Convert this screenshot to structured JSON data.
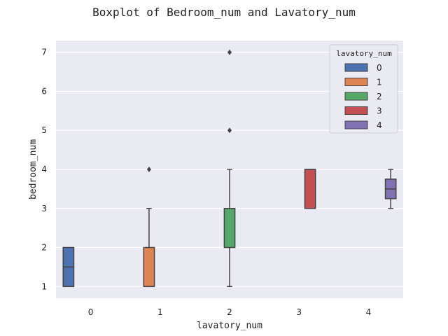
{
  "chart_data": {
    "type": "boxplot",
    "title": "Boxplot of Bedroom_num and Lavatory_num",
    "xlabel": "lavatory_num",
    "ylabel": "bedroom_num",
    "categories": [
      "0",
      "1",
      "2",
      "3",
      "4"
    ],
    "y_ticks": [
      1,
      2,
      3,
      4,
      5,
      6,
      7
    ],
    "ylim": [
      0.7,
      7.3
    ],
    "grid": true,
    "legend": {
      "title": "lavatory_num",
      "position": "top-right",
      "entries": [
        "0",
        "1",
        "2",
        "3",
        "4"
      ]
    },
    "colors": [
      "#4c72b0",
      "#dd8452",
      "#55a868",
      "#c44e52",
      "#8172b3"
    ],
    "series": [
      {
        "name": "0",
        "category": "0",
        "whisker_low": 1,
        "q1": 1,
        "median": 1.5,
        "q3": 2,
        "whisker_high": 2,
        "outliers": []
      },
      {
        "name": "1",
        "category": "1",
        "whisker_low": 1,
        "q1": 1,
        "median": 1,
        "q3": 2,
        "whisker_high": 3,
        "outliers": [
          4
        ]
      },
      {
        "name": "2",
        "category": "2",
        "whisker_low": 1,
        "q1": 2,
        "median": 3,
        "q3": 3,
        "whisker_high": 4,
        "outliers": [
          5,
          7
        ]
      },
      {
        "name": "3",
        "category": "3",
        "whisker_low": 3,
        "q1": 3,
        "median": 4,
        "q3": 4,
        "whisker_high": 4,
        "outliers": []
      },
      {
        "name": "4",
        "category": "4",
        "whisker_low": 3,
        "q1": 3.25,
        "median": 3.5,
        "q3": 3.75,
        "whisker_high": 4,
        "outliers": []
      }
    ]
  }
}
